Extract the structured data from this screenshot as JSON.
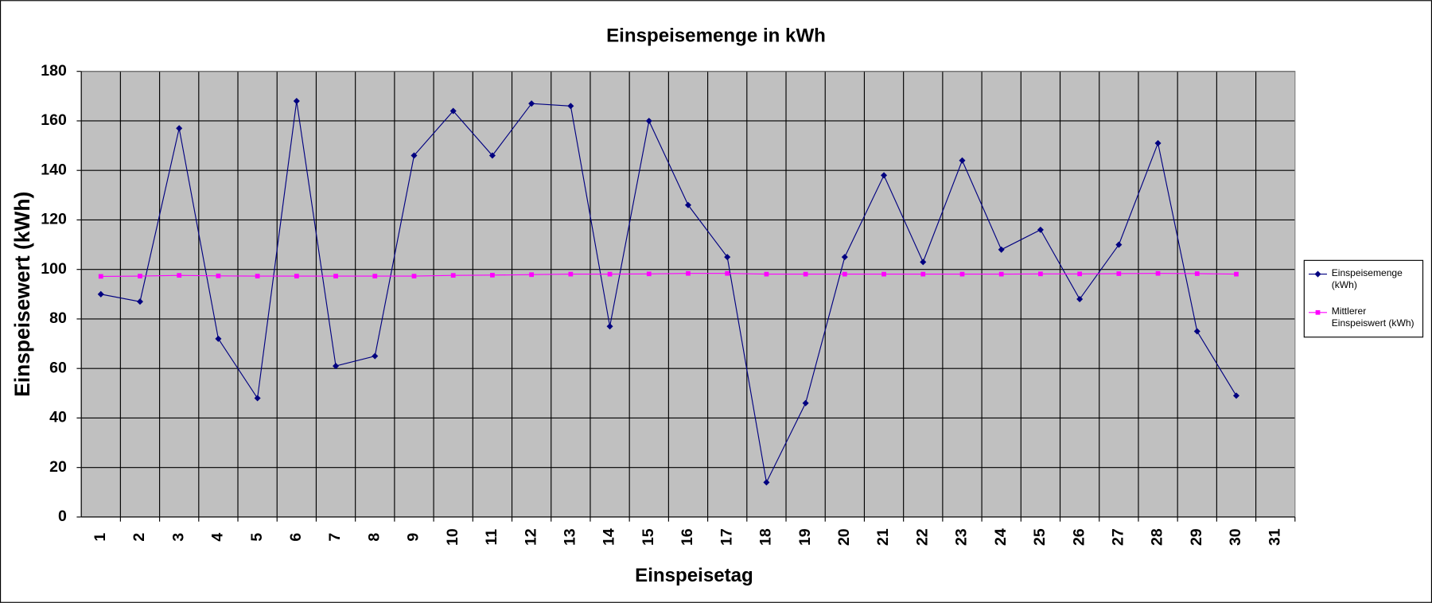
{
  "chart_data": {
    "type": "line",
    "title": "Einspeisemenge in kWh",
    "x_label": "Einspeisetag",
    "y_label": "Einspeisewert  (kWh)",
    "categories": [
      "1",
      "2",
      "3",
      "4",
      "5",
      "6",
      "7",
      "8",
      "9",
      "10",
      "11",
      "12",
      "13",
      "14",
      "15",
      "16",
      "17",
      "18",
      "19",
      "20",
      "21",
      "22",
      "23",
      "24",
      "25",
      "26",
      "27",
      "28",
      "29",
      "30",
      "31"
    ],
    "series": [
      {
        "name": "Einspeisemenge (kWh)",
        "color": "#000080",
        "marker": "diamond",
        "values": [
          90,
          87,
          157,
          72,
          48,
          168,
          61,
          65,
          146,
          164,
          146,
          167,
          166,
          77,
          160,
          126,
          105,
          14,
          46,
          105,
          138,
          103,
          144,
          108,
          116,
          88,
          110,
          151,
          75,
          49,
          null
        ]
      },
      {
        "name": "Mittlerer Einspeiswert (kWh)",
        "color": "#ff00ff",
        "marker": "square",
        "values": [
          97.2,
          97.3,
          97.6,
          97.4,
          97.3,
          97.3,
          97.3,
          97.3,
          97.3,
          97.6,
          97.7,
          97.9,
          98.1,
          98.1,
          98.2,
          98.4,
          98.4,
          98.1,
          98.1,
          98.1,
          98.1,
          98.1,
          98.1,
          98.1,
          98.2,
          98.2,
          98.3,
          98.4,
          98.3,
          98.1,
          null
        ]
      }
    ],
    "ylim": [
      0,
      180
    ],
    "yticks": [
      0,
      20,
      40,
      60,
      80,
      100,
      120,
      140,
      160,
      180
    ],
    "grid": true,
    "legend": "right"
  }
}
